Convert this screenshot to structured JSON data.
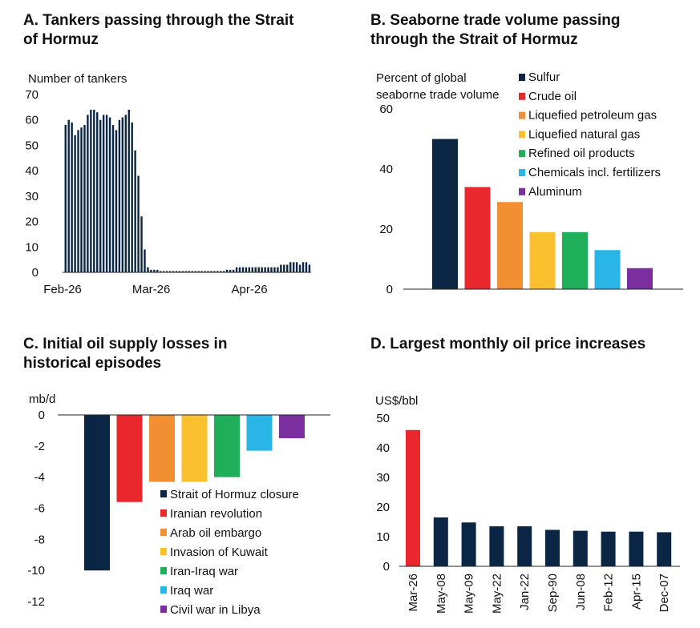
{
  "colors": {
    "navy": "#0b2545",
    "red": "#e8282d",
    "orange": "#f28f33",
    "yellow": "#fbc02d",
    "green": "#1fae5a",
    "cyan": "#29b6e6",
    "purple": "#7b2f9e",
    "axis": "#222222"
  },
  "chart_data": [
    {
      "panel": "A",
      "type": "bar",
      "title_line1": "A. Tankers passing through the Strait",
      "title_line2": "of Hormuz",
      "ylabel": "Number of tankers",
      "ylim": [
        0,
        70
      ],
      "yticks": [
        "0",
        "10",
        "20",
        "30",
        "40",
        "50",
        "60",
        "70"
      ],
      "xtick_labels": [
        "Feb-26",
        "Mar-26",
        "Apr-26"
      ],
      "xtick_days": [
        0,
        28,
        59
      ],
      "x_days": [
        1,
        2,
        3,
        4,
        5,
        6,
        7,
        8,
        9,
        10,
        11,
        12,
        13,
        14,
        15,
        16,
        17,
        18,
        19,
        20,
        21,
        22,
        23,
        24,
        25,
        26,
        27,
        28,
        29,
        30,
        31,
        32,
        33,
        34,
        35,
        36,
        37,
        38,
        39,
        40,
        41,
        42,
        43,
        44,
        45,
        46,
        47,
        48,
        49,
        50,
        51,
        52,
        53,
        54,
        55,
        56,
        57,
        58,
        59,
        60,
        61,
        62,
        63,
        64,
        65,
        66,
        67,
        68,
        69,
        70,
        71,
        72,
        73,
        74,
        75,
        76,
        77,
        78
      ],
      "values": [
        58,
        60,
        59,
        54,
        56,
        57,
        58,
        62,
        64,
        64,
        63,
        60,
        62,
        62,
        61,
        58,
        56,
        60,
        61,
        62,
        64,
        59,
        48,
        38,
        22,
        9,
        2,
        1,
        1,
        1,
        0.5,
        0.5,
        0.5,
        0.5,
        0.5,
        0.5,
        0.5,
        0.5,
        0.5,
        0.5,
        0.5,
        0.5,
        0.5,
        0.5,
        0.5,
        0.5,
        0.5,
        0.5,
        0.5,
        0.5,
        0.5,
        1,
        1,
        1,
        2,
        2,
        2,
        2,
        2,
        2,
        2,
        2,
        2,
        2,
        2,
        2,
        2,
        2,
        3,
        3,
        3,
        4,
        4,
        4,
        3,
        4,
        4,
        3
      ]
    },
    {
      "panel": "B",
      "type": "bar",
      "title_line1": "B. Seaborne trade volume passing",
      "title_line2": "through the Strait of Hormuz",
      "ylabel_line1": "Percent of global",
      "ylabel_line2": "seaborne trade volume",
      "ylim": [
        0,
        60
      ],
      "yticks": [
        "0",
        "20",
        "40",
        "60"
      ],
      "categories": [
        "Sulfur",
        "Crude oil",
        "Liquefied petroleum gas",
        "Liquefied natural gas",
        "Refined oil products",
        "Chemicals incl. fertilizers",
        "Aluminum"
      ],
      "values": [
        50,
        34,
        29,
        19,
        19,
        13,
        7
      ],
      "bar_colors": [
        "#0b2545",
        "#e8282d",
        "#f28f33",
        "#fbc02d",
        "#1fae5a",
        "#29b6e6",
        "#7b2f9e"
      ],
      "legend_position": "top-right"
    },
    {
      "panel": "C",
      "type": "bar",
      "title_line1": "C. Initial oil supply losses in",
      "title_line2": "historical episodes",
      "ylabel": "mb/d",
      "ylim": [
        -12,
        0
      ],
      "yticks": [
        "0",
        "-2",
        "-4",
        "-6",
        "-8",
        "-10",
        "-12"
      ],
      "categories": [
        "Strait of Hormuz closure",
        "Iranian revolution",
        "Arab oil embargo",
        "Invasion of Kuwait",
        "Iran-Iraq war",
        "Iraq war",
        "Civil war in Libya"
      ],
      "values": [
        -10,
        -5.6,
        -4.3,
        -4.3,
        -4.0,
        -2.3,
        -1.5
      ],
      "bar_colors": [
        "#0b2545",
        "#e8282d",
        "#f28f33",
        "#fbc02d",
        "#1fae5a",
        "#29b6e6",
        "#7b2f9e"
      ],
      "legend_position": "bottom-right"
    },
    {
      "panel": "D",
      "type": "bar",
      "title_line1": "D. Largest monthly oil price increases",
      "ylabel": "US$/bbl",
      "ylim": [
        0,
        50
      ],
      "yticks": [
        "0",
        "10",
        "20",
        "30",
        "40",
        "50"
      ],
      "categories": [
        "Mar-26",
        "May-08",
        "May-09",
        "May-22",
        "Jan-22",
        "Sep-90",
        "Jun-08",
        "Feb-12",
        "Apr-15",
        "Dec-07"
      ],
      "values": [
        46,
        16.5,
        14.8,
        13.5,
        13.5,
        12.3,
        12,
        11.7,
        11.7,
        11.5
      ],
      "bar_colors": [
        "#e8282d",
        "#0b2545",
        "#0b2545",
        "#0b2545",
        "#0b2545",
        "#0b2545",
        "#0b2545",
        "#0b2545",
        "#0b2545",
        "#0b2545"
      ]
    }
  ]
}
